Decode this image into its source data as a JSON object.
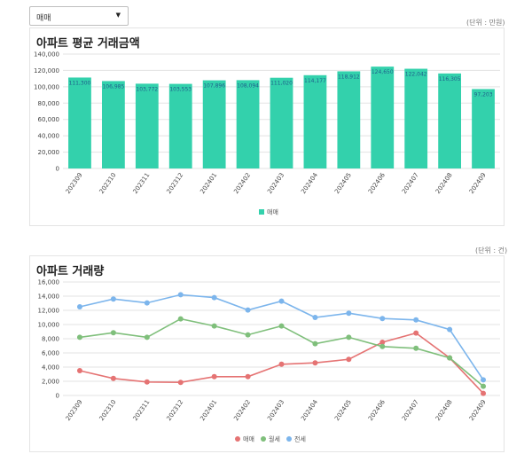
{
  "filter": {
    "selected": "매매",
    "arrow": "▼"
  },
  "unit1": "(단위 : 만원)",
  "unit2": "(단위 : 건)",
  "colors": {
    "bar": "#33d1ac",
    "sale": "#e57373",
    "monthly": "#7fbf7b",
    "jeonse": "#7cb5ec",
    "grid": "#e3e3e3"
  },
  "chart_data": [
    {
      "type": "bar",
      "title": "아파트 평균 거래금액",
      "categories": [
        "202309",
        "202310",
        "202311",
        "202312",
        "202401",
        "202402",
        "202403",
        "202404",
        "202405",
        "202406",
        "202407",
        "202408",
        "202409"
      ],
      "series": [
        {
          "name": "매매",
          "values": [
            111300,
            106985,
            103772,
            103553,
            107896,
            108094,
            111020,
            114177,
            118912,
            124650,
            122042,
            116305,
            97203
          ]
        }
      ],
      "value_labels": [
        "111,300",
        "106,985",
        "103,772",
        "103,553",
        "107,896",
        "108,094",
        "111,020",
        "114,177",
        "118,912",
        "124,650",
        "122,042",
        "116,305",
        "97,203"
      ],
      "ylim": [
        0,
        140000
      ],
      "yticks": [
        "0",
        "20,000",
        "40,000",
        "60,000",
        "80,000",
        "100,000",
        "120,000",
        "140,000"
      ],
      "legend": "bottom",
      "grid": true
    },
    {
      "type": "line",
      "title": "아파트 거래량",
      "categories": [
        "202309",
        "202310",
        "202311",
        "202312",
        "202401",
        "202402",
        "202403",
        "202404",
        "202405",
        "202406",
        "202407",
        "202408",
        "202409"
      ],
      "series": [
        {
          "name": "매매",
          "values": [
            3500,
            2400,
            1900,
            1850,
            2650,
            2650,
            4400,
            4600,
            5100,
            7500,
            8800,
            5300,
            300
          ]
        },
        {
          "name": "월세",
          "values": [
            8200,
            8850,
            8200,
            10800,
            9800,
            8550,
            9800,
            7300,
            8200,
            6900,
            6650,
            5300,
            1300
          ]
        },
        {
          "name": "전세",
          "values": [
            12500,
            13600,
            13050,
            14200,
            13800,
            12050,
            13300,
            11000,
            11600,
            10850,
            10650,
            9300,
            2200
          ]
        }
      ],
      "ylim": [
        0,
        16000
      ],
      "yticks": [
        "0",
        "2,000",
        "4,000",
        "6,000",
        "8,000",
        "10,000",
        "12,000",
        "14,000",
        "16,000"
      ],
      "legend": "bottom",
      "grid": true
    }
  ]
}
